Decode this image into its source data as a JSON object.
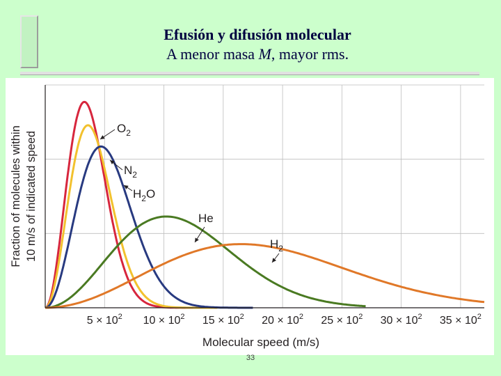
{
  "slide": {
    "title": "Efusión y difusión molecular",
    "subtitle_prefix": "A menor masa ",
    "subtitle_var": "M",
    "subtitle_suffix": ", mayor rms.",
    "page_number": "33"
  },
  "chart_data": {
    "type": "line",
    "xlabel": "Molecular speed (m/s)",
    "ylabel_line1": "Fraction of molecules within",
    "ylabel_line2": "10 m/s of indicated speed",
    "xlim": [
      0,
      3700
    ],
    "ylim": [
      0,
      1.05
    ],
    "x_tick_values": [
      500,
      1000,
      1500,
      2000,
      2500,
      3000,
      3500
    ],
    "x_tick_labels": [
      {
        "coef": "5",
        "exp": "2"
      },
      {
        "coef": "10",
        "exp": "2"
      },
      {
        "coef": "15",
        "exp": "2"
      },
      {
        "coef": "20",
        "exp": "2"
      },
      {
        "coef": "25",
        "exp": "2"
      },
      {
        "coef": "30",
        "exp": "2"
      },
      {
        "coef": "35",
        "exp": "2"
      }
    ],
    "grid": true,
    "series": [
      {
        "name": "O2",
        "base": "O",
        "sub": "2",
        "color": "#d7263d",
        "peak_x": 330,
        "peak_y": 0.97,
        "x_max": 1300
      },
      {
        "name": "N2",
        "base": "N",
        "sub": "2",
        "color": "#f2c12e",
        "peak_x": 360,
        "peak_y": 0.86,
        "x_max": 1450
      },
      {
        "name": "H2O",
        "base": "H",
        "sub": "2",
        "suffix": "O",
        "color": "#283a80",
        "peak_x": 470,
        "peak_y": 0.76,
        "x_max": 1750
      },
      {
        "name": "He",
        "base": "He",
        "sub": "",
        "color": "#4a7a22",
        "peak_x": 1020,
        "peak_y": 0.43,
        "x_max": 2700
      },
      {
        "name": "H2",
        "base": "H",
        "sub": "2",
        "color": "#e07828",
        "peak_x": 1650,
        "peak_y": 0.3,
        "x_max": 3700
      }
    ]
  }
}
